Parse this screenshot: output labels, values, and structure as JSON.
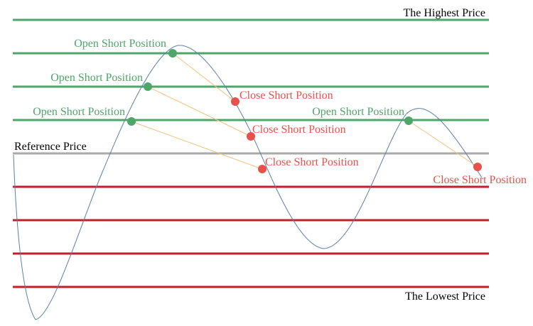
{
  "labels": {
    "highest": "The Highest Price",
    "lowest": "The Lowest Price",
    "reference": "Reference Price",
    "open_short": "Open Short Position",
    "close_short": "Close Short Position"
  },
  "levels": {
    "above_reference": 4,
    "below_reference": 4
  },
  "trades": [
    {
      "open": "Open Short Position",
      "close": "Close Short Position"
    },
    {
      "open": "Open Short Position",
      "close": "Close Short Position"
    },
    {
      "open": "Open Short Position",
      "close": "Close Short Position"
    },
    {
      "open": "Open Short Position",
      "close": "Close Short Position"
    }
  ],
  "colors": {
    "upper_grid": "#4ea66a",
    "lower_grid": "#c0202a",
    "reference_line": "#aaaaaa",
    "price_curve": "#5b7fa6",
    "open_marker": "#4ea66a",
    "close_marker": "#e8514a",
    "connector": "#f2c27e",
    "open_text": "#4ea66a",
    "close_text": "#e8514a",
    "boundary_text": "#000000"
  }
}
